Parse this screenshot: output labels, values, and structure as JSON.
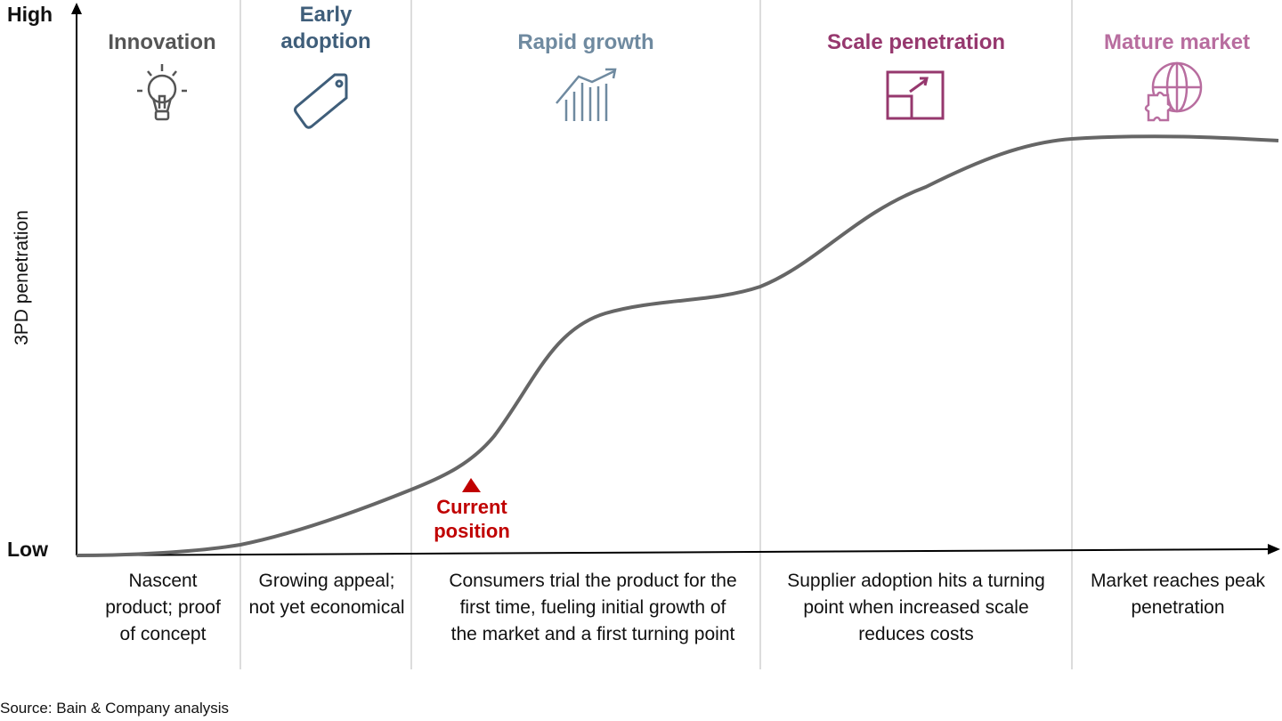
{
  "axis": {
    "y_high": "High",
    "y_low": "Low",
    "y_label": "3PD penetration"
  },
  "phases": [
    {
      "title": "Innovation",
      "color": "#555555",
      "icon": "lightbulb-icon",
      "description": "Nascent product; proof of concept"
    },
    {
      "title": "Early adoption",
      "color": "#3f5e7a",
      "icon": "price-tag-icon",
      "description": "Growing appeal; not yet economical"
    },
    {
      "title": "Rapid growth",
      "color": "#6f8aa0",
      "icon": "growth-chart-icon",
      "description": "Consumers trial the product for the first time, fueling initial growth of the market and a first turning point"
    },
    {
      "title": "Scale penetration",
      "color": "#96386e",
      "icon": "scale-expand-icon",
      "description": "Supplier adoption hits a turning point when increased scale reduces costs"
    },
    {
      "title": "Mature market",
      "color": "#b86d9f",
      "icon": "globe-puzzle-icon",
      "description": "Market reaches peak penetration"
    }
  ],
  "marker": {
    "label": "Current position",
    "color": "#c00000"
  },
  "source": "Source: Bain & Company analysis"
}
